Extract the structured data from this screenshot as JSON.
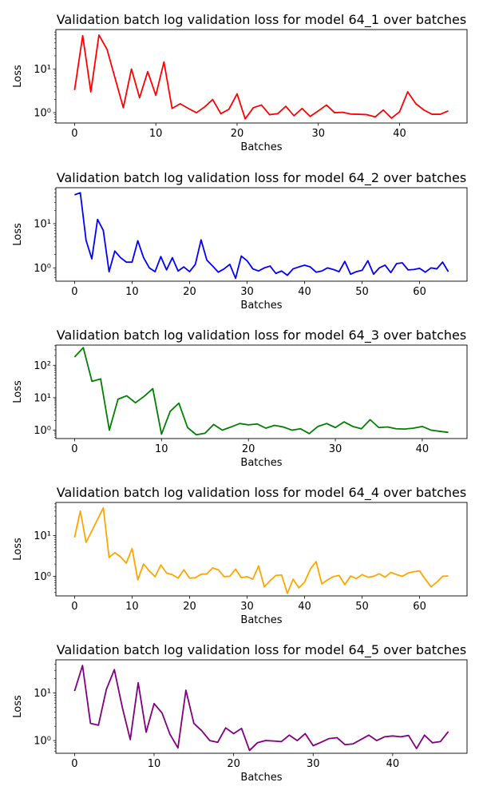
{
  "chart_data": [
    {
      "type": "line",
      "title": "Validation batch log validation loss for model 64_1 over batches",
      "xlabel": "Batches",
      "ylabel": "Loss",
      "yscale": "log",
      "xlim": [
        -2.3,
        48.3
      ],
      "ylim": [
        0.58,
        80
      ],
      "xticks": [
        0,
        10,
        20,
        30,
        40
      ],
      "yticks": [
        1,
        10
      ],
      "ytick_labels": [
        "10⁰",
        "10¹"
      ],
      "color": "#ff0000",
      "x": [
        0,
        1,
        2,
        3,
        4,
        5,
        6,
        7,
        8,
        9,
        10,
        11,
        12,
        13,
        14,
        15,
        16,
        17,
        18,
        19,
        20,
        21,
        22,
        23,
        24,
        25,
        26,
        27,
        28,
        29,
        30,
        31,
        32,
        33,
        34,
        35,
        36,
        37,
        38,
        39,
        40,
        41,
        42,
        43,
        44,
        45,
        46
      ],
      "values": [
        3.3,
        58,
        3.0,
        60,
        28,
        6,
        1.3,
        10,
        2.2,
        8.7,
        2.5,
        14.5,
        1.25,
        1.6,
        1.25,
        1.0,
        1.35,
        2.0,
        0.95,
        1.2,
        2.7,
        0.72,
        1.3,
        1.5,
        0.9,
        0.95,
        1.4,
        0.85,
        1.25,
        0.82,
        1.1,
        1.5,
        1.0,
        1.02,
        0.93,
        0.92,
        0.9,
        0.8,
        1.15,
        0.75,
        1.05,
        3.0,
        1.6,
        1.15,
        0.92,
        0.92,
        1.1
      ]
    },
    {
      "type": "line",
      "title": "Validation batch log validation loss for model 64_2 over batches",
      "xlabel": "Batches",
      "ylabel": "Loss",
      "yscale": "log",
      "xlim": [
        -3.25,
        68.25
      ],
      "ylim": [
        0.5,
        65
      ],
      "xticks": [
        0,
        10,
        20,
        30,
        40,
        50,
        60
      ],
      "yticks": [
        1,
        10
      ],
      "ytick_labels": [
        "10⁰",
        "10¹"
      ],
      "color": "#0000ff",
      "x": [
        0,
        1,
        2,
        3,
        4,
        5,
        6,
        7,
        8,
        9,
        10,
        11,
        12,
        13,
        14,
        15,
        16,
        17,
        18,
        19,
        20,
        21,
        22,
        23,
        24,
        25,
        26,
        27,
        28,
        29,
        30,
        31,
        32,
        33,
        34,
        35,
        36,
        37,
        38,
        39,
        40,
        41,
        42,
        43,
        44,
        45,
        46,
        47,
        48,
        49,
        50,
        51,
        52,
        53,
        54,
        55,
        56,
        57,
        58,
        59,
        60,
        61,
        62,
        63,
        64,
        65
      ],
      "values": [
        45,
        50,
        4.2,
        1.6,
        12.5,
        7,
        0.82,
        2.4,
        1.7,
        1.35,
        1.35,
        4.1,
        1.7,
        1.0,
        0.82,
        1.8,
        0.9,
        1.7,
        0.85,
        1.05,
        0.82,
        1.2,
        4.3,
        1.5,
        1.1,
        0.8,
        0.95,
        1.2,
        0.58,
        1.85,
        1.45,
        0.95,
        0.85,
        1.0,
        1.1,
        0.75,
        0.85,
        0.68,
        0.95,
        1.05,
        1.15,
        1.05,
        0.8,
        0.85,
        1.0,
        0.92,
        0.82,
        1.4,
        0.72,
        0.82,
        0.88,
        1.45,
        0.72,
        1.0,
        1.15,
        0.78,
        1.25,
        1.3,
        0.9,
        0.92,
        0.98,
        0.8,
        1.0,
        0.95,
        1.35,
        0.82
      ]
    },
    {
      "type": "line",
      "title": "Validation batch log validation loss for model 64_3 over batches",
      "xlabel": "Batches",
      "ylabel": "Loss",
      "yscale": "log",
      "xlim": [
        -2.15,
        45.15
      ],
      "ylim": [
        0.55,
        420
      ],
      "xticks": [
        0,
        10,
        20,
        30,
        40
      ],
      "yticks": [
        1,
        10,
        100
      ],
      "ytick_labels": [
        "10⁰",
        "10¹",
        "10²"
      ],
      "color": "#008000",
      "x": [
        0,
        1,
        2,
        3,
        4,
        5,
        6,
        7,
        8,
        9,
        10,
        11,
        12,
        13,
        14,
        15,
        16,
        17,
        18,
        19,
        20,
        21,
        22,
        23,
        24,
        25,
        26,
        27,
        28,
        29,
        30,
        31,
        32,
        33,
        34,
        35,
        36,
        37,
        38,
        39,
        40,
        41,
        42,
        43
      ],
      "values": [
        180,
        350,
        32,
        38,
        1.0,
        9,
        11.5,
        7,
        11,
        19,
        0.75,
        3.8,
        6.8,
        1.2,
        0.72,
        0.8,
        1.5,
        1.0,
        1.25,
        1.6,
        1.45,
        1.55,
        1.15,
        1.4,
        1.25,
        1.0,
        1.1,
        0.78,
        1.3,
        1.6,
        1.2,
        1.8,
        1.3,
        1.1,
        2.1,
        1.2,
        1.25,
        1.1,
        1.08,
        1.15,
        1.3,
        1.0,
        0.92,
        0.85
      ]
    },
    {
      "type": "line",
      "title": "Validation batch log validation loss for model 64_4 over batches",
      "xlabel": "Batches",
      "ylabel": "Loss",
      "yscale": "log",
      "xlim": [
        -3.25,
        68.25
      ],
      "ylim": [
        0.33,
        65
      ],
      "xticks": [
        0,
        10,
        20,
        30,
        40,
        50,
        60
      ],
      "yticks": [
        1,
        10
      ],
      "ytick_labels": [
        "10⁰",
        "10¹"
      ],
      "color": "#ffa500",
      "x": [
        0,
        1,
        2,
        3,
        4,
        5,
        6,
        7,
        8,
        9,
        10,
        11,
        12,
        13,
        14,
        15,
        16,
        17,
        18,
        19,
        20,
        21,
        22,
        23,
        24,
        25,
        26,
        27,
        28,
        29,
        30,
        31,
        32,
        33,
        34,
        35,
        36,
        37,
        38,
        39,
        40,
        41,
        42,
        43,
        44,
        45,
        46,
        47,
        48,
        49,
        50,
        51,
        52,
        53,
        54,
        55,
        56,
        57,
        58,
        59,
        60,
        61,
        62,
        63,
        64,
        65
      ],
      "values": [
        9,
        40,
        6.8,
        13,
        25,
        48,
        2.9,
        3.8,
        3.0,
        2.1,
        4.8,
        0.82,
        2.0,
        1.35,
        0.98,
        1.9,
        1.2,
        1.1,
        0.9,
        1.45,
        0.9,
        0.92,
        1.12,
        1.15,
        1.6,
        1.45,
        0.98,
        1.0,
        1.5,
        0.92,
        0.98,
        0.85,
        1.8,
        0.55,
        0.78,
        1.05,
        1.08,
        0.38,
        0.85,
        0.52,
        0.72,
        1.5,
        2.3,
        0.65,
        0.82,
        0.98,
        1.05,
        0.62,
        1.02,
        0.88,
        1.1,
        0.95,
        1.0,
        1.15,
        0.95,
        1.25,
        1.1,
        1.0,
        1.2,
        1.3,
        1.35,
        0.85,
        0.55,
        0.72,
        1.0,
        1.02
      ]
    },
    {
      "type": "line",
      "title": "Validation batch log validation loss for model 64_5 over batches",
      "xlabel": "Batches",
      "ylabel": "Loss",
      "yscale": "log",
      "xlim": [
        -2.35,
        49.35
      ],
      "ylim": [
        0.54,
        50
      ],
      "xticks": [
        0,
        10,
        20,
        30,
        40
      ],
      "yticks": [
        1,
        10
      ],
      "ytick_labels": [
        "10⁰",
        "10¹"
      ],
      "color": "#800080",
      "x": [
        0,
        1,
        2,
        3,
        4,
        5,
        6,
        7,
        8,
        9,
        10,
        11,
        12,
        13,
        14,
        15,
        16,
        17,
        18,
        19,
        20,
        21,
        22,
        23,
        24,
        25,
        26,
        27,
        28,
        29,
        30,
        31,
        32,
        33,
        34,
        35,
        36,
        37,
        38,
        39,
        40,
        41,
        42,
        43,
        44,
        45,
        46,
        47
      ],
      "values": [
        11,
        38,
        2.3,
        2.1,
        12,
        31,
        5,
        1.05,
        16.5,
        1.5,
        6,
        3.8,
        1.35,
        0.7,
        11.5,
        2.3,
        1.6,
        1.0,
        0.92,
        1.85,
        1.4,
        1.8,
        0.62,
        0.9,
        1.0,
        0.98,
        0.95,
        1.3,
        1.0,
        1.4,
        0.78,
        0.92,
        1.1,
        1.15,
        0.82,
        0.85,
        1.05,
        1.3,
        1.0,
        1.2,
        1.25,
        1.2,
        1.28,
        0.68,
        1.3,
        0.9,
        0.95,
        1.55
      ]
    }
  ]
}
